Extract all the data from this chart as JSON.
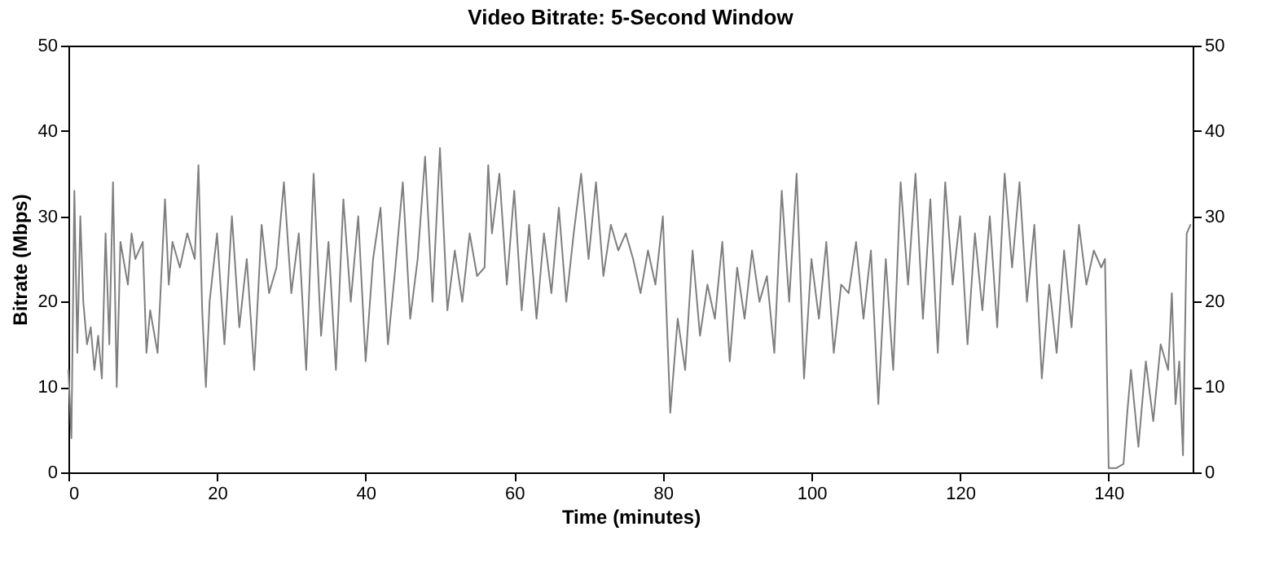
{
  "chart_data": {
    "type": "line",
    "title": "Video Bitrate: 5-Second Window",
    "xlabel": "Time (minutes)",
    "ylabel": "Bitrate (Mbps)",
    "xlim": [
      0,
      151.3
    ],
    "xticks": [
      0,
      20,
      40,
      60,
      80,
      100,
      120,
      140
    ],
    "ylim": [
      0,
      50
    ],
    "yticks": [
      0,
      10,
      20,
      30,
      40,
      50
    ],
    "y2lim": [
      0,
      50
    ],
    "y2ticks": [
      0,
      10,
      20,
      30,
      40,
      50
    ],
    "grid": false,
    "series": [
      {
        "color": "#7f7f7f",
        "x": [
          0,
          0.4,
          0.8,
          1.2,
          1.6,
          2,
          2.5,
          3,
          3.5,
          4,
          4.5,
          5,
          5.5,
          6,
          6.5,
          7,
          8,
          8.5,
          9,
          10,
          10.5,
          11,
          12,
          13,
          13.5,
          14,
          15,
          16,
          17,
          17.5,
          18,
          18.5,
          19,
          20,
          21,
          22,
          23,
          24,
          25,
          26,
          27,
          28,
          29,
          30,
          31,
          32,
          33,
          34,
          35,
          36,
          37,
          38,
          39,
          40,
          41,
          42,
          43,
          44,
          45,
          46,
          47,
          48,
          49,
          50,
          51,
          52,
          53,
          54,
          55,
          56,
          56.5,
          57,
          58,
          59,
          60,
          61,
          62,
          63,
          64,
          65,
          66,
          67,
          68,
          69,
          70,
          71,
          72,
          73,
          74,
          75,
          76,
          77,
          78,
          79,
          80,
          81,
          82,
          83,
          84,
          85,
          86,
          87,
          88,
          89,
          90,
          91,
          92,
          93,
          94,
          95,
          96,
          97,
          98,
          99,
          100,
          101,
          102,
          103,
          104,
          105,
          106,
          107,
          108,
          109,
          110,
          111,
          112,
          113,
          114,
          115,
          116,
          117,
          118,
          119,
          120,
          121,
          122,
          123,
          124,
          125,
          126,
          127,
          128,
          129,
          130,
          131,
          132,
          133,
          134,
          135,
          136,
          137,
          138,
          139,
          139.5,
          140,
          141,
          142,
          142.5,
          143,
          144,
          145,
          146,
          147,
          148,
          148.5,
          149,
          149.5,
          150,
          150.5,
          151
        ],
        "values": [
          12,
          4,
          33,
          14,
          30,
          20,
          15,
          17,
          12,
          16,
          11,
          28,
          15,
          34,
          10,
          27,
          22,
          28,
          25,
          27,
          14,
          19,
          14,
          32,
          22,
          27,
          24,
          28,
          25,
          36,
          19,
          10,
          20,
          28,
          15,
          30,
          17,
          25,
          12,
          29,
          21,
          24,
          34,
          21,
          28,
          12,
          35,
          16,
          27,
          12,
          32,
          20,
          30,
          13,
          25,
          31,
          15,
          24,
          34,
          18,
          25,
          37,
          20,
          38,
          19,
          26,
          20,
          28,
          23,
          24,
          36,
          28,
          35,
          22,
          33,
          19,
          29,
          18,
          28,
          21,
          31,
          20,
          28,
          35,
          25,
          34,
          23,
          29,
          26,
          28,
          25,
          21,
          26,
          22,
          30,
          7,
          18,
          12,
          26,
          16,
          22,
          18,
          27,
          13,
          24,
          18,
          26,
          20,
          23,
          14,
          33,
          20,
          35,
          11,
          25,
          18,
          27,
          14,
          22,
          21,
          27,
          18,
          26,
          8,
          25,
          12,
          34,
          22,
          35,
          18,
          32,
          14,
          34,
          22,
          30,
          15,
          28,
          19,
          30,
          17,
          35,
          24,
          34,
          20,
          29,
          11,
          22,
          14,
          26,
          17,
          29,
          22,
          26,
          24,
          25,
          0.5,
          0.5,
          1,
          7,
          12,
          3,
          13,
          6,
          15,
          12,
          21,
          8,
          13,
          2,
          28,
          29
        ]
      }
    ]
  }
}
